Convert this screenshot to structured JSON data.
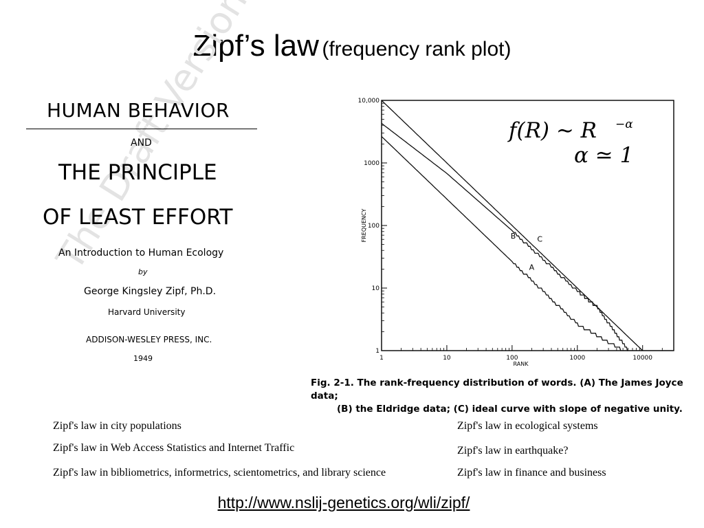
{
  "slide": {
    "title_main": "Zipf’s law",
    "title_sub": "(frequency rank plot)"
  },
  "book_cover": {
    "title_line1": "HUMAN BEHAVIOR",
    "and": "AND",
    "title_line2": "THE PRINCIPLE",
    "title_line3": "OF LEAST EFFORT",
    "subtitle": "An Introduction to Human Ecology",
    "by": "by",
    "author": "George Kingsley Zipf, Ph.D.",
    "affiliation": "Harvard University",
    "publisher": "ADDISON-WESLEY PRESS, INC.",
    "year": "1949",
    "watermark": "The Draft Version"
  },
  "figure": {
    "formula_line1": "f(R) ∼ R",
    "formula_exp": "−α",
    "formula_line2": "α ≃ 1",
    "caption_line1": "Fig. 2-1. The rank-frequency distribution of words. (A) The James Joyce data;",
    "caption_line2": "(B) the Eldridge data; (C) ideal curve with slope of negative unity."
  },
  "chart_data": {
    "type": "line",
    "xlabel": "RANK",
    "ylabel": "FREQUENCY",
    "xscale": "log",
    "yscale": "log",
    "xlim": [
      1,
      30000
    ],
    "ylim": [
      1,
      10000
    ],
    "x_ticks": [
      "1",
      "10",
      "100",
      "1000",
      "10000"
    ],
    "y_ticks": [
      "1",
      "10",
      "100",
      "1000",
      "10,000"
    ],
    "series": [
      {
        "name": "A",
        "x": [
          1,
          10,
          100,
          1000,
          5000,
          10000,
          29000
        ],
        "y": [
          2650,
          265,
          26.5,
          2.65,
          1,
          1,
          1
        ]
      },
      {
        "name": "C",
        "x": [
          1,
          10,
          100,
          1000,
          10000
        ],
        "y": [
          10000,
          1000,
          100,
          10,
          1
        ]
      },
      {
        "name": "B",
        "x": [
          1,
          10,
          100,
          1000,
          2000,
          6000
        ],
        "y": [
          4290,
          680,
          83,
          8.9,
          5,
          1
        ]
      }
    ]
  },
  "notes": {
    "left": [
      "Zipf's law in city populations",
      "Zipf's law in Web Access Statistics and Internet Traffic",
      "Zipf's law in bibliometrics, informetrics, scientometrics, and library science"
    ],
    "right": [
      "Zipf's law in ecological systems",
      "Zipf's law in earthquake?",
      "Zipf's law in finance and business"
    ]
  },
  "link": {
    "url": "http://www.nslij-genetics.org/wli/zipf/"
  }
}
